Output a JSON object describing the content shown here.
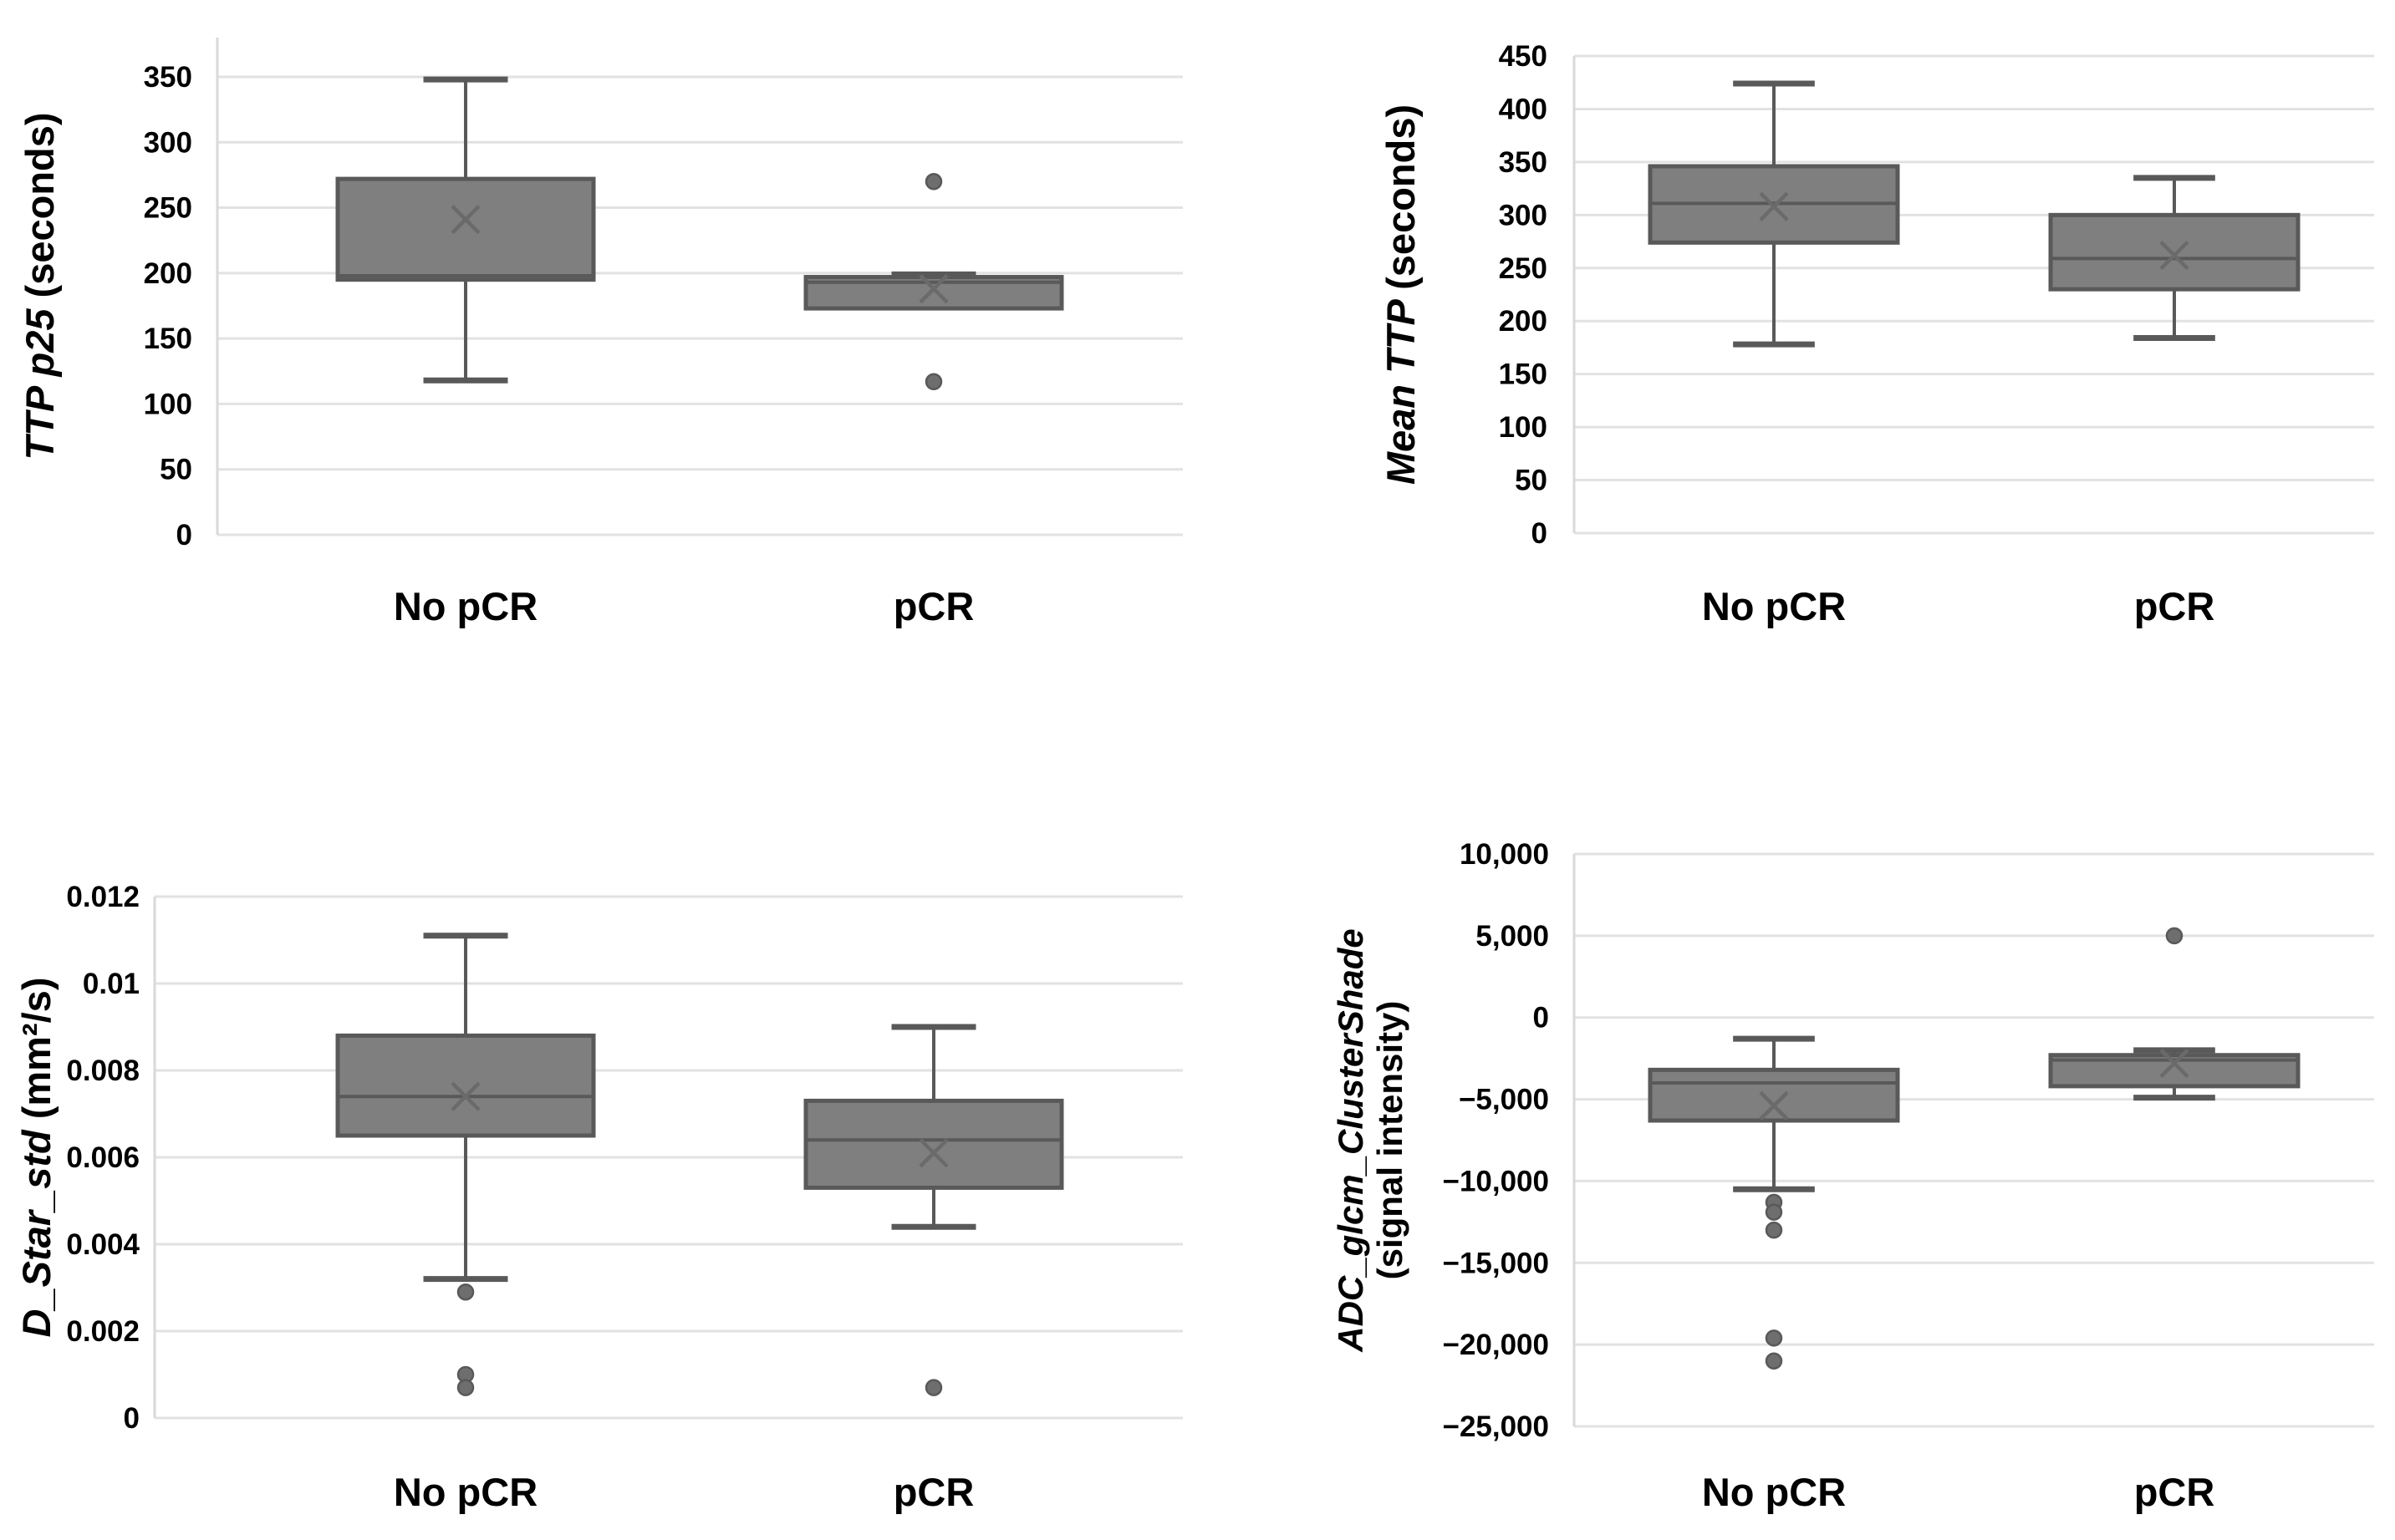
{
  "figure": {
    "background": "#ffffff",
    "box_fill": "#7f7f7f",
    "box_border": "#595959",
    "whisker_color": "#595959",
    "median_color": "#595959",
    "mean_marker_color": "#6a6a6a",
    "mean_marker_glyph": "x-cross",
    "outlier_color": "#6e6e6e",
    "gridline_color": "#e2e2e2",
    "axis_line_color": "#d9d9d9",
    "text_color": "#000000"
  },
  "chart_data": [
    {
      "type": "boxplot",
      "id": "ttp-p25",
      "ylabel_main": "TTP p25",
      "ylabel_unit": "(seconds)",
      "ylabel_two_line": false,
      "ymin": 0,
      "ymax": 380,
      "grid": true,
      "yticks": [
        {
          "value": 0,
          "label": "0"
        },
        {
          "value": 50,
          "label": "50"
        },
        {
          "value": 100,
          "label": "100"
        },
        {
          "value": 150,
          "label": "150"
        },
        {
          "value": 200,
          "label": "200"
        },
        {
          "value": 250,
          "label": "250"
        },
        {
          "value": 300,
          "label": "300"
        },
        {
          "value": 350,
          "label": "350"
        }
      ],
      "categories": [
        "No pCR",
        "pCR"
      ],
      "groups": [
        {
          "label": "No pCR",
          "whisker_low": 118,
          "q1": 195,
          "median": 198,
          "q3": 272,
          "whisker_high": 348,
          "mean": 241,
          "outliers": []
        },
        {
          "label": "pCR",
          "whisker_low": 173,
          "q1": 173,
          "median": 193,
          "q3": 197,
          "whisker_high": 199,
          "mean": 188,
          "outliers": [
            270,
            117
          ]
        }
      ]
    },
    {
      "type": "boxplot",
      "id": "mean-ttp",
      "ylabel_main": "Mean TTP",
      "ylabel_unit": "(seconds)",
      "ylabel_two_line": false,
      "ymin": 0,
      "ymax": 450,
      "grid": true,
      "yticks": [
        {
          "value": 0,
          "label": "0"
        },
        {
          "value": 50,
          "label": "50"
        },
        {
          "value": 100,
          "label": "100"
        },
        {
          "value": 150,
          "label": "150"
        },
        {
          "value": 200,
          "label": "200"
        },
        {
          "value": 250,
          "label": "250"
        },
        {
          "value": 300,
          "label": "300"
        },
        {
          "value": 350,
          "label": "350"
        },
        {
          "value": 400,
          "label": "400"
        },
        {
          "value": 450,
          "label": "450"
        }
      ],
      "categories": [
        "No pCR",
        "pCR"
      ],
      "groups": [
        {
          "label": "No pCR",
          "whisker_low": 178,
          "q1": 274,
          "median": 311,
          "q3": 346,
          "whisker_high": 424,
          "mean": 308,
          "outliers": []
        },
        {
          "label": "pCR",
          "whisker_low": 184,
          "q1": 230,
          "median": 259,
          "q3": 300,
          "whisker_high": 335,
          "mean": 262,
          "outliers": []
        }
      ]
    },
    {
      "type": "boxplot",
      "id": "d-star-std",
      "ylabel_main": "D_Star_std",
      "ylabel_unit": "(mm²/s)",
      "ylabel_two_line": false,
      "ymin": 0,
      "ymax": 0.012,
      "grid": true,
      "yticks": [
        {
          "value": 0,
          "label": "0"
        },
        {
          "value": 0.002,
          "label": "0.002"
        },
        {
          "value": 0.004,
          "label": "0.004"
        },
        {
          "value": 0.006,
          "label": "0.006"
        },
        {
          "value": 0.008,
          "label": "0.008"
        },
        {
          "value": 0.01,
          "label": "0.01"
        },
        {
          "value": 0.012,
          "label": "0.012"
        }
      ],
      "categories": [
        "No pCR",
        "pCR"
      ],
      "groups": [
        {
          "label": "No pCR",
          "whisker_low": 0.0032,
          "q1": 0.0065,
          "median": 0.0074,
          "q3": 0.0088,
          "whisker_high": 0.0111,
          "mean": 0.0074,
          "outliers": [
            0.0029,
            0.001,
            0.0007
          ]
        },
        {
          "label": "pCR",
          "whisker_low": 0.0044,
          "q1": 0.0053,
          "median": 0.0064,
          "q3": 0.0073,
          "whisker_high": 0.009,
          "mean": 0.0061,
          "outliers": [
            0.0007
          ]
        }
      ]
    },
    {
      "type": "boxplot",
      "id": "adc-glcm-clustershade",
      "ylabel_main": "ADC_glcm_ClusterShade",
      "ylabel_unit": "(signal intensity)",
      "ylabel_two_line": true,
      "ymin": -25000,
      "ymax": 10000,
      "grid": true,
      "yticks": [
        {
          "value": 10000,
          "label": "10,000"
        },
        {
          "value": 5000,
          "label": "5,000"
        },
        {
          "value": 0,
          "label": "0"
        },
        {
          "value": -5000,
          "label": "−5,000"
        },
        {
          "value": -10000,
          "label": "−10,000"
        },
        {
          "value": -15000,
          "label": "−15,000"
        },
        {
          "value": -20000,
          "label": "−20,000"
        },
        {
          "value": -25000,
          "label": "−25,000"
        }
      ],
      "categories": [
        "No pCR",
        "pCR"
      ],
      "groups": [
        {
          "label": "No pCR",
          "whisker_low": -10500,
          "q1": -6300,
          "median": -4000,
          "q3": -3200,
          "whisker_high": -1300,
          "mean": -5400,
          "outliers": [
            -11300,
            -11900,
            -13000,
            -19600,
            -21000
          ]
        },
        {
          "label": "pCR",
          "whisker_low": -4900,
          "q1": -4200,
          "median": -2600,
          "q3": -2300,
          "whisker_high": -2000,
          "mean": -2800,
          "outliers": [
            5000
          ]
        }
      ]
    }
  ]
}
